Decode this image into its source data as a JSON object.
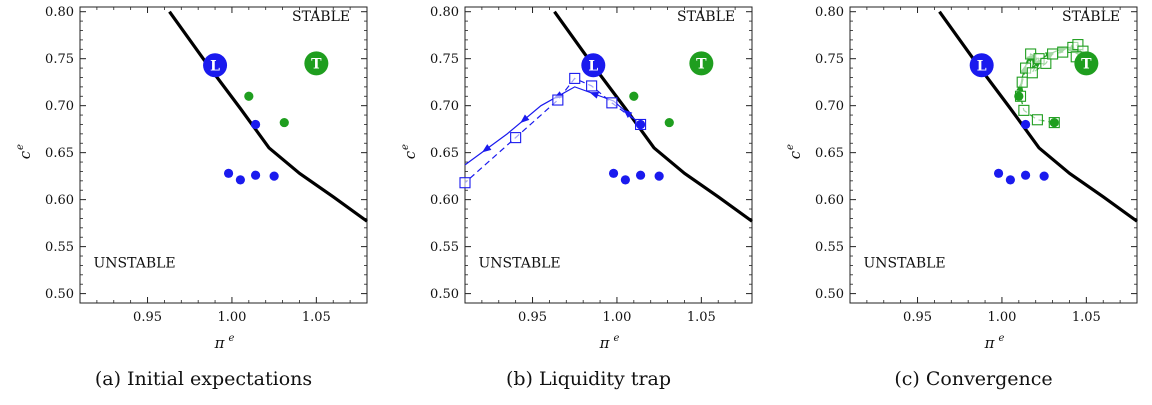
{
  "chart_data": [
    {
      "type": "scatter",
      "caption": "(a) Initial expectations",
      "xlabel": "π",
      "xlabel_sup": "e",
      "ylabel": "c",
      "ylabel_sup": "e",
      "xlim": [
        0.91,
        1.08
      ],
      "ylim": [
        0.49,
        0.805
      ],
      "xticks": [
        {
          "v": 0.95,
          "label": "0.95"
        },
        {
          "v": 1.0,
          "label": "1.00"
        },
        {
          "v": 1.05,
          "label": "1.05"
        }
      ],
      "yticks": [
        {
          "v": 0.5,
          "label": "0.50"
        },
        {
          "v": 0.55,
          "label": "0.55"
        },
        {
          "v": 0.6,
          "label": "0.60"
        },
        {
          "v": 0.65,
          "label": "0.65"
        },
        {
          "v": 0.7,
          "label": "0.70"
        },
        {
          "v": 0.75,
          "label": "0.75"
        },
        {
          "v": 0.8,
          "label": "0.80"
        }
      ],
      "regions": [
        {
          "text": "STABLE",
          "x": 1.07,
          "y": 0.79,
          "anchor": "end"
        },
        {
          "text": "UNSTABLE",
          "x": 0.918,
          "y": 0.528,
          "anchor": "start"
        }
      ],
      "boundary": [
        [
          0.963,
          0.8
        ],
        [
          0.985,
          0.745
        ],
        [
          1.005,
          0.697
        ],
        [
          1.022,
          0.655
        ],
        [
          1.04,
          0.628
        ],
        [
          1.06,
          0.603
        ],
        [
          1.08,
          0.577
        ]
      ],
      "markers": [
        {
          "label": "L",
          "x": 0.99,
          "y": 0.743,
          "color": "#1a1aee"
        },
        {
          "label": "T",
          "x": 1.05,
          "y": 0.745,
          "color": "#1f9e1f"
        }
      ],
      "series": [
        {
          "color": "#1f9e1f",
          "points": [
            [
              1.01,
              0.71
            ],
            [
              1.031,
              0.682
            ]
          ]
        },
        {
          "color": "#1a1aee",
          "points": [
            [
              1.014,
              0.68
            ],
            [
              0.998,
              0.628
            ],
            [
              1.005,
              0.621
            ],
            [
              1.014,
              0.626
            ],
            [
              1.025,
              0.625
            ]
          ]
        }
      ],
      "paths": []
    },
    {
      "type": "scatter",
      "caption": "(b) Liquidity trap",
      "xlabel": "π",
      "xlabel_sup": "e",
      "ylabel": "c",
      "ylabel_sup": "e",
      "xlim": [
        0.91,
        1.08
      ],
      "ylim": [
        0.49,
        0.805
      ],
      "xticks": [
        {
          "v": 0.95,
          "label": "0.95"
        },
        {
          "v": 1.0,
          "label": "1.00"
        },
        {
          "v": 1.05,
          "label": "1.05"
        }
      ],
      "yticks": [
        {
          "v": 0.5,
          "label": "0.50"
        },
        {
          "v": 0.55,
          "label": "0.55"
        },
        {
          "v": 0.6,
          "label": "0.60"
        },
        {
          "v": 0.65,
          "label": "0.65"
        },
        {
          "v": 0.7,
          "label": "0.70"
        },
        {
          "v": 0.75,
          "label": "0.75"
        },
        {
          "v": 0.8,
          "label": "0.80"
        }
      ],
      "regions": [
        {
          "text": "STABLE",
          "x": 1.07,
          "y": 0.79,
          "anchor": "end"
        },
        {
          "text": "UNSTABLE",
          "x": 0.918,
          "y": 0.528,
          "anchor": "start"
        }
      ],
      "boundary": [
        [
          0.963,
          0.8
        ],
        [
          0.985,
          0.745
        ],
        [
          1.005,
          0.697
        ],
        [
          1.022,
          0.655
        ],
        [
          1.04,
          0.628
        ],
        [
          1.06,
          0.603
        ],
        [
          1.08,
          0.577
        ]
      ],
      "markers": [
        {
          "label": "L",
          "x": 0.986,
          "y": 0.743,
          "color": "#1a1aee"
        },
        {
          "label": "T",
          "x": 1.05,
          "y": 0.745,
          "color": "#1f9e1f"
        }
      ],
      "series": [
        {
          "color": "#1f9e1f",
          "points": [
            [
              1.01,
              0.71
            ],
            [
              1.031,
              0.682
            ]
          ]
        },
        {
          "color": "#1a1aee",
          "points": [
            [
              1.014,
              0.68
            ],
            [
              0.998,
              0.628
            ],
            [
              1.005,
              0.621
            ],
            [
              1.014,
              0.626
            ],
            [
              1.025,
              0.625
            ]
          ]
        }
      ],
      "paths": [
        {
          "color": "#1a1aee",
          "dashed": false,
          "squares": false,
          "arrows": true,
          "points": [
            [
              1.014,
              0.68
            ],
            [
              0.998,
              0.705
            ],
            [
              0.975,
              0.72
            ],
            [
              0.955,
              0.7
            ],
            [
              0.935,
              0.67
            ],
            [
              0.91,
              0.637
            ]
          ]
        },
        {
          "color": "#1a1aee",
          "dashed": true,
          "squares": true,
          "arrows": false,
          "points": [
            [
              1.014,
              0.68
            ],
            [
              0.997,
              0.703
            ],
            [
              0.985,
              0.721
            ],
            [
              0.975,
              0.729
            ],
            [
              0.965,
              0.706
            ],
            [
              0.94,
              0.666
            ],
            [
              0.91,
              0.618
            ]
          ]
        }
      ]
    },
    {
      "type": "scatter",
      "caption": "(c) Convergence",
      "xlabel": "π",
      "xlabel_sup": "e",
      "ylabel": "c",
      "ylabel_sup": "e",
      "xlim": [
        0.91,
        1.08
      ],
      "ylim": [
        0.49,
        0.805
      ],
      "xticks": [
        {
          "v": 0.95,
          "label": "0.95"
        },
        {
          "v": 1.0,
          "label": "1.00"
        },
        {
          "v": 1.05,
          "label": "1.05"
        }
      ],
      "yticks": [
        {
          "v": 0.5,
          "label": "0.50"
        },
        {
          "v": 0.55,
          "label": "0.55"
        },
        {
          "v": 0.6,
          "label": "0.60"
        },
        {
          "v": 0.65,
          "label": "0.65"
        },
        {
          "v": 0.7,
          "label": "0.70"
        },
        {
          "v": 0.75,
          "label": "0.75"
        },
        {
          "v": 0.8,
          "label": "0.80"
        }
      ],
      "regions": [
        {
          "text": "STABLE",
          "x": 1.07,
          "y": 0.79,
          "anchor": "end"
        },
        {
          "text": "UNSTABLE",
          "x": 0.918,
          "y": 0.528,
          "anchor": "start"
        }
      ],
      "boundary": [
        [
          0.963,
          0.8
        ],
        [
          0.985,
          0.745
        ],
        [
          1.005,
          0.697
        ],
        [
          1.022,
          0.655
        ],
        [
          1.04,
          0.628
        ],
        [
          1.06,
          0.603
        ],
        [
          1.08,
          0.577
        ]
      ],
      "markers": [
        {
          "label": "L",
          "x": 0.988,
          "y": 0.743,
          "color": "#1a1aee"
        },
        {
          "label": "T",
          "x": 1.05,
          "y": 0.745,
          "color": "#1f9e1f"
        }
      ],
      "series": [
        {
          "color": "#1f9e1f",
          "points": [
            [
              1.01,
              0.71
            ],
            [
              1.031,
              0.682
            ]
          ]
        },
        {
          "color": "#1a1aee",
          "points": [
            [
              1.014,
              0.68
            ],
            [
              0.998,
              0.628
            ],
            [
              1.005,
              0.621
            ],
            [
              1.014,
              0.626
            ],
            [
              1.025,
              0.625
            ]
          ]
        }
      ],
      "paths": [
        {
          "color": "#1f9e1f",
          "dashed": false,
          "squares": false,
          "arrows": true,
          "points": [
            [
              1.01,
              0.71
            ],
            [
              1.012,
              0.73
            ],
            [
              1.015,
              0.748
            ],
            [
              1.02,
              0.755
            ],
            [
              1.018,
              0.74
            ],
            [
              1.025,
              0.752
            ],
            [
              1.032,
              0.758
            ],
            [
              1.04,
              0.762
            ],
            [
              1.045,
              0.758
            ],
            [
              1.048,
              0.752
            ],
            [
              1.053,
              0.749
            ]
          ]
        },
        {
          "color": "#1f9e1f",
          "dashed": true,
          "squares": true,
          "arrows": false,
          "points": [
            [
              1.031,
              0.682
            ],
            [
              1.021,
              0.685
            ],
            [
              1.013,
              0.695
            ],
            [
              1.011,
              0.71
            ],
            [
              1.012,
              0.725
            ],
            [
              1.014,
              0.74
            ],
            [
              1.017,
              0.755
            ],
            [
              1.022,
              0.75
            ],
            [
              1.018,
              0.735
            ],
            [
              1.026,
              0.745
            ],
            [
              1.03,
              0.755
            ],
            [
              1.036,
              0.757
            ],
            [
              1.042,
              0.762
            ],
            [
              1.045,
              0.765
            ],
            [
              1.048,
              0.758
            ],
            [
              1.044,
              0.752
            ],
            [
              1.05,
              0.75
            ],
            [
              1.052,
              0.748
            ]
          ]
        }
      ]
    }
  ]
}
